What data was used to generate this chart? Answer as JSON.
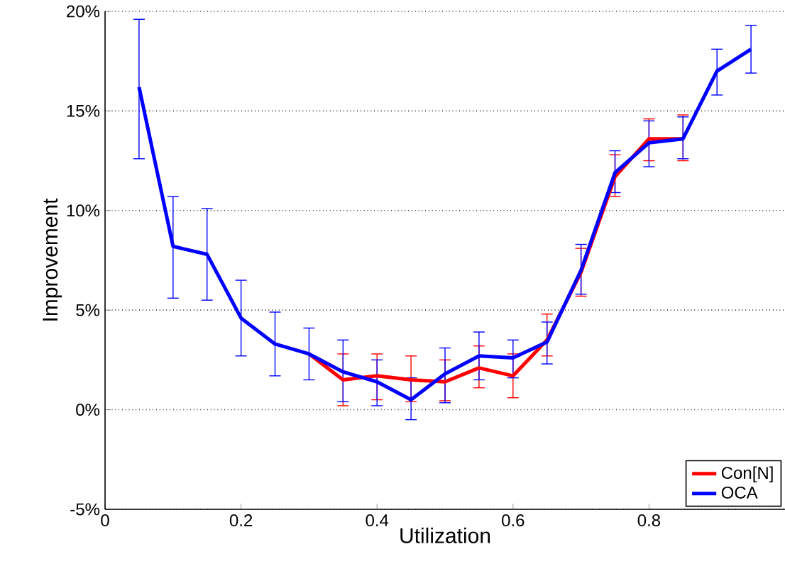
{
  "chart_data": {
    "type": "line",
    "xlabel": "Utilization",
    "ylabel": "Improvement",
    "x": [
      0.05,
      0.1,
      0.15,
      0.2,
      0.25,
      0.3,
      0.35,
      0.4,
      0.45,
      0.5,
      0.55,
      0.6,
      0.65,
      0.7,
      0.75,
      0.8,
      0.85,
      0.9,
      0.95
    ],
    "series": [
      {
        "name": "Con[N]",
        "color": "#ff0000",
        "values": [
          null,
          null,
          null,
          null,
          null,
          2.8,
          1.5,
          1.7,
          1.5,
          1.4,
          2.1,
          1.7,
          3.5,
          6.9,
          11.7,
          13.6,
          13.6,
          null,
          null
        ],
        "errors": [
          null,
          null,
          null,
          null,
          null,
          null,
          [
            0.2,
            2.8
          ],
          [
            0.5,
            2.8
          ],
          [
            0.4,
            2.7
          ],
          [
            0.45,
            2.5
          ],
          [
            1.1,
            3.2
          ],
          [
            0.6,
            2.8
          ],
          [
            2.7,
            4.8
          ],
          [
            5.7,
            8.1
          ],
          [
            10.7,
            12.8
          ],
          [
            12.5,
            14.6
          ],
          [
            12.5,
            14.8
          ],
          null,
          null
        ]
      },
      {
        "name": "OCA",
        "color": "#0000ff",
        "values": [
          16.2,
          8.2,
          7.8,
          4.6,
          3.3,
          2.8,
          1.9,
          1.4,
          0.5,
          1.8,
          2.7,
          2.6,
          3.4,
          7.0,
          11.9,
          13.4,
          13.6,
          17.0,
          18.1
        ],
        "errors": [
          [
            12.6,
            19.6
          ],
          [
            5.6,
            10.7
          ],
          [
            5.5,
            10.1
          ],
          [
            2.7,
            6.5
          ],
          [
            1.7,
            4.9
          ],
          [
            1.5,
            4.1
          ],
          [
            0.4,
            3.5
          ],
          [
            0.2,
            2.5
          ],
          [
            -0.5,
            1.6
          ],
          [
            0.35,
            3.1
          ],
          [
            1.5,
            3.9
          ],
          [
            1.6,
            3.5
          ],
          [
            2.3,
            4.4
          ],
          [
            5.8,
            8.3
          ],
          [
            10.9,
            13.0
          ],
          [
            12.2,
            14.5
          ],
          [
            12.6,
            14.7
          ],
          [
            15.8,
            18.1
          ],
          [
            16.9,
            19.3
          ]
        ]
      }
    ],
    "xlim": [
      0,
      1
    ],
    "ylim": [
      -5,
      20
    ],
    "xticks": [
      0,
      0.2,
      0.4,
      0.6,
      0.8
    ],
    "yticks": [
      {
        "value": -5,
        "label": "-5%"
      },
      {
        "value": 0,
        "label": "0%"
      },
      {
        "value": 5,
        "label": "5%"
      },
      {
        "value": 10,
        "label": "10%"
      },
      {
        "value": 15,
        "label": "15%"
      },
      {
        "value": 20,
        "label": "20%"
      }
    ],
    "grid": "y",
    "legend": "bottom right",
    "marker": "none",
    "line_style": "solid"
  }
}
